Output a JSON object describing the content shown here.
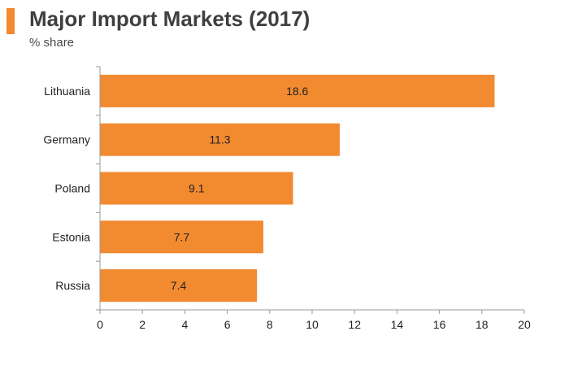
{
  "header": {
    "title": "Major Import Markets (2017)",
    "subtitle": "% share"
  },
  "colors": {
    "accent": "#f28a30",
    "bar": "#f28a30",
    "axis": "#999999",
    "text": "#222222"
  },
  "chart_data": {
    "type": "bar",
    "orientation": "horizontal",
    "title": "Major Import Markets (2017)",
    "subtitle": "% share",
    "categories": [
      "Lithuania",
      "Germany",
      "Poland",
      "Estonia",
      "Russia"
    ],
    "values": [
      18.6,
      11.3,
      9.1,
      7.7,
      7.4
    ],
    "value_labels": [
      "18.6",
      "11.3",
      "9.1",
      "7.7",
      "7.4"
    ],
    "xlim": [
      0,
      20
    ],
    "xticks": [
      0,
      2,
      4,
      6,
      8,
      10,
      12,
      14,
      16,
      18,
      20
    ],
    "xlabel": "",
    "ylabel": "",
    "grid": false,
    "legend": "none"
  }
}
